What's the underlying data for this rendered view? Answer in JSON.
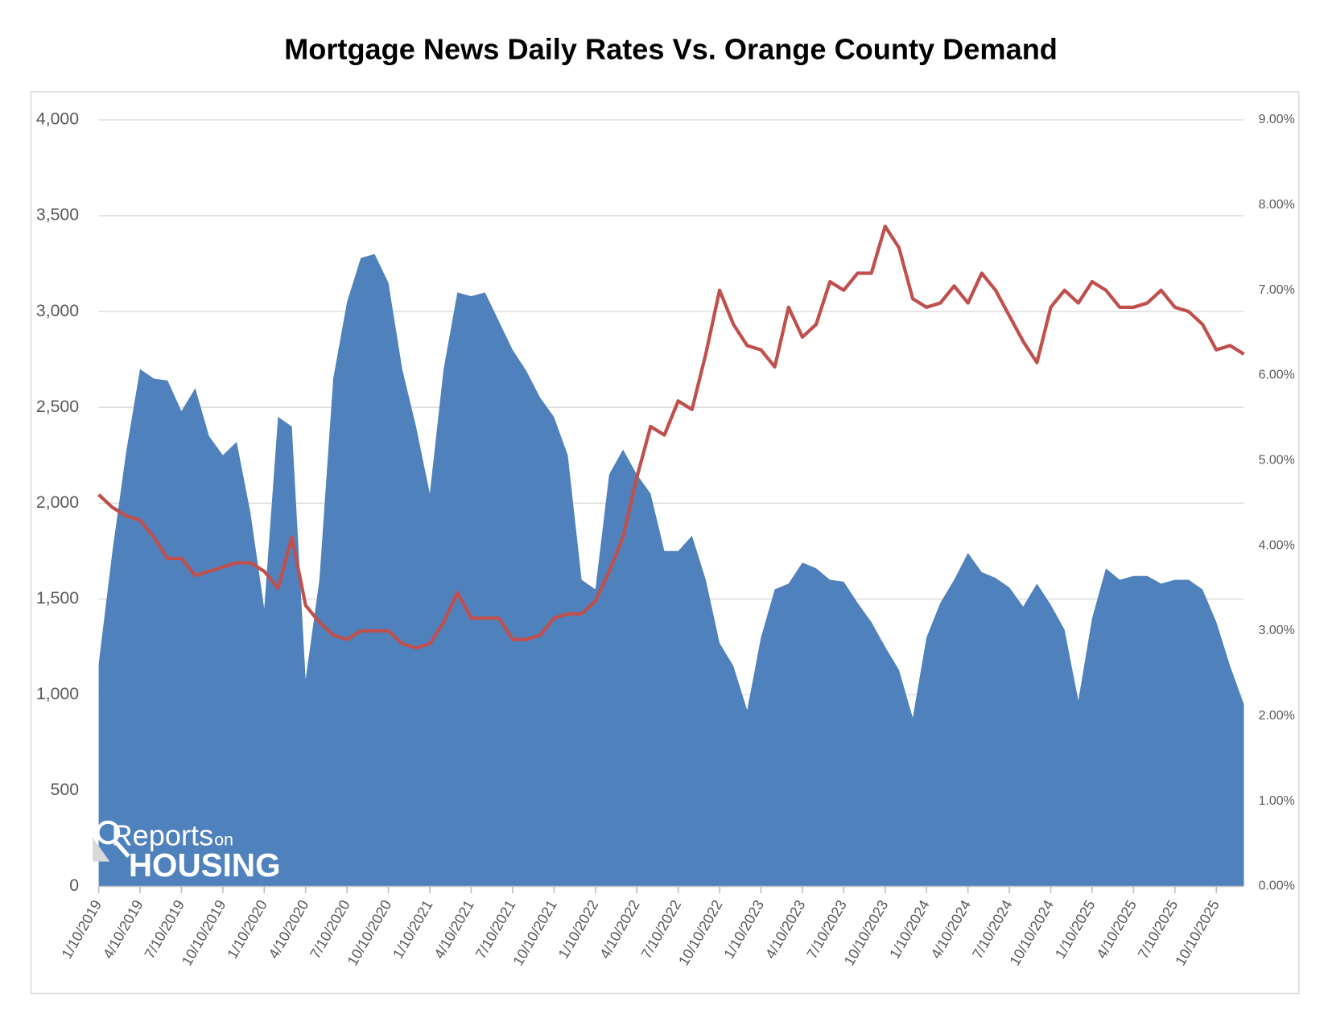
{
  "chart_data": {
    "type": "area",
    "title": "Mortgage News Daily Rates Vs. Orange County Demand",
    "categories": [
      "1/10/2019",
      null,
      null,
      "4/10/2019",
      null,
      null,
      "7/10/2019",
      null,
      null,
      "10/10/2019",
      null,
      null,
      "1/10/2020",
      null,
      null,
      "4/10/2020",
      null,
      null,
      "7/10/2020",
      null,
      null,
      "10/10/2020",
      null,
      null,
      "1/10/2021",
      null,
      null,
      "4/10/2021",
      null,
      null,
      "7/10/2021",
      null,
      null,
      "10/10/2021",
      null,
      null,
      "1/10/2022",
      null,
      null,
      "4/10/2022",
      null,
      null,
      "7/10/2022",
      null,
      null,
      "10/10/2022",
      null,
      null,
      "1/10/2023",
      null,
      null,
      "4/10/2023",
      null,
      null,
      "7/10/2023",
      null,
      null,
      "10/10/2023",
      null,
      null,
      "1/10/2024",
      null,
      null,
      "4/10/2024",
      null,
      null,
      "7/10/2024",
      null,
      null,
      "10/10/2024",
      null,
      null,
      "1/10/2025",
      null,
      null,
      "4/10/2025",
      null,
      null,
      "7/10/2025",
      null,
      null,
      "10/10/2025",
      null,
      null
    ],
    "series": [
      {
        "type": "area",
        "color": "#4f81bd",
        "values": [
          1160,
          1750,
          2270,
          2700,
          2650,
          2640,
          2480,
          2600,
          2350,
          2250,
          2320,
          1950,
          1450,
          2450,
          2400,
          1080,
          1600,
          2650,
          3050,
          3280,
          3300,
          3150,
          2700,
          2400,
          2050,
          2700,
          3100,
          3080,
          3100,
          2950,
          2800,
          2690,
          2550,
          2450,
          2250,
          1600,
          1550,
          2150,
          2280,
          2150,
          2050,
          1750,
          1750,
          1830,
          1600,
          1270,
          1150,
          920,
          1300,
          1550,
          1580,
          1690,
          1660,
          1600,
          1590,
          1480,
          1380,
          1250,
          1130,
          880,
          1300,
          1480,
          1600,
          1740,
          1640,
          1610,
          1560,
          1460,
          1580,
          1470,
          1340,
          970,
          1400,
          1660,
          1600,
          1620,
          1620,
          1580,
          1600,
          1600,
          1550,
          1380,
          1150,
          950
        ]
      },
      {
        "type": "line",
        "axis": "y2",
        "color": "#c0504d",
        "values": [
          4.6,
          4.45,
          4.35,
          4.3,
          4.1,
          3.85,
          3.85,
          3.65,
          3.7,
          3.75,
          3.8,
          3.8,
          3.7,
          3.5,
          4.1,
          3.3,
          3.1,
          2.95,
          2.9,
          3.0,
          3.0,
          3.0,
          2.85,
          2.8,
          2.85,
          3.1,
          3.45,
          3.15,
          3.15,
          3.15,
          2.9,
          2.9,
          2.95,
          3.15,
          3.2,
          3.2,
          3.35,
          3.7,
          4.1,
          4.8,
          5.4,
          5.3,
          5.7,
          5.6,
          6.25,
          7.0,
          6.6,
          6.35,
          6.3,
          6.1,
          6.8,
          6.45,
          6.6,
          7.1,
          7.0,
          7.2,
          7.2,
          7.75,
          7.5,
          6.9,
          6.8,
          6.85,
          7.05,
          6.85,
          7.2,
          7.0,
          6.7,
          6.4,
          6.15,
          6.8,
          7.0,
          6.85,
          7.1,
          7.0,
          6.8,
          6.8,
          6.85,
          7.0,
          6.8,
          6.75,
          6.6,
          6.3,
          6.35,
          6.25
        ]
      }
    ],
    "ylim": [
      0,
      4000
    ],
    "yticks": [
      0,
      500,
      {
        "value": 1000,
        "label": "1,000"
      },
      {
        "value": 1500,
        "label": "1,500"
      },
      {
        "value": 2000,
        "label": "2,000"
      },
      {
        "value": 2500,
        "label": "2,500"
      },
      {
        "value": 3000,
        "label": "3,000"
      },
      {
        "value": 3500,
        "label": "3,500"
      },
      {
        "value": 4000,
        "label": "4,000"
      }
    ],
    "y2lim": [
      0,
      9
    ],
    "y2ticks": [
      {
        "value": 0,
        "label": "0.00%"
      },
      {
        "value": 1,
        "label": "1.00%"
      },
      {
        "value": 2,
        "label": "2.00%"
      },
      {
        "value": 3,
        "label": "3.00%"
      },
      {
        "value": 4,
        "label": "4.00%"
      },
      {
        "value": 5,
        "label": "5.00%"
      },
      {
        "value": 6,
        "label": "6.00%"
      },
      {
        "value": 7,
        "label": "7.00%"
      },
      {
        "value": 8,
        "label": "8.00%"
      },
      {
        "value": 9,
        "label": "9.00%"
      }
    ],
    "grid": true,
    "logo": {
      "word": "Reports",
      "small": "on",
      "big": "HOUSING"
    }
  }
}
